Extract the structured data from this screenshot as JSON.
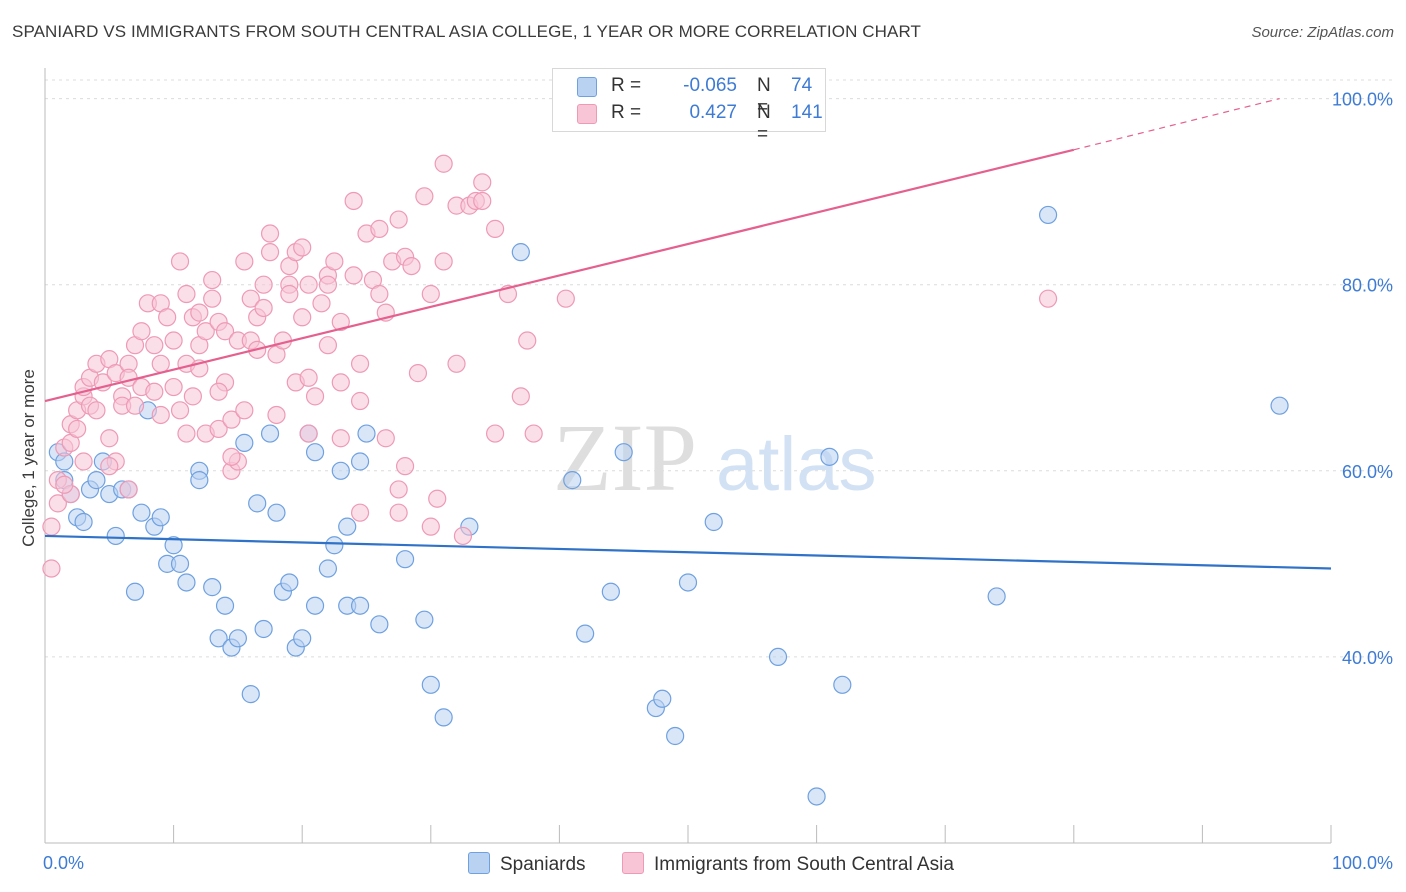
{
  "chart_data": {
    "type": "scatter",
    "title": "SPANIARD VS IMMIGRANTS FROM SOUTH CENTRAL ASIA COLLEGE, 1 YEAR OR MORE CORRELATION CHART",
    "source": "Source: ZipAtlas.com",
    "ylabel": "College, 1 year or more",
    "xlabel": "",
    "xlim": [
      0,
      100
    ],
    "ylim": [
      20,
      102
    ],
    "x_tick_labels": [
      "0.0%",
      "100.0%"
    ],
    "y_ticks": [
      {
        "value": 100,
        "label": "100.0%"
      },
      {
        "value": 80,
        "label": "80.0%"
      },
      {
        "value": 60,
        "label": "60.0%"
      },
      {
        "value": 40,
        "label": "40.0%"
      }
    ],
    "watermark": {
      "zip": "ZIP",
      "atlas": "atlas"
    },
    "legend_stats": [
      {
        "r_label": "R =",
        "r_value": "-0.065",
        "n_label": "N =",
        "n_value": "74"
      },
      {
        "r_label": "R =",
        "r_value": "0.427",
        "n_label": "N =",
        "n_value": "141"
      }
    ],
    "series": [
      {
        "name": "Spaniards",
        "color": "#6fa1e0",
        "fill": "#b9d2f2",
        "line_color": "#2f72c8",
        "trend": {
          "x0": 0,
          "y0": 53.0,
          "x1": 100,
          "y1": 49.5
        },
        "points": [
          [
            1,
            62
          ],
          [
            1.5,
            61
          ],
          [
            1.5,
            59
          ],
          [
            2,
            57.5
          ],
          [
            2.5,
            55
          ],
          [
            3,
            54.5
          ],
          [
            3.5,
            58
          ],
          [
            4,
            59
          ],
          [
            4.5,
            61
          ],
          [
            5,
            57.5
          ],
          [
            5.5,
            53
          ],
          [
            6,
            58
          ],
          [
            6.5,
            58
          ],
          [
            7,
            47
          ],
          [
            7.5,
            55.5
          ],
          [
            8,
            66.5
          ],
          [
            8.5,
            54
          ],
          [
            9,
            55
          ],
          [
            9.5,
            50
          ],
          [
            10,
            52
          ],
          [
            10.5,
            50
          ],
          [
            11,
            48
          ],
          [
            12,
            60
          ],
          [
            12,
            59
          ],
          [
            13,
            47.5
          ],
          [
            14,
            45.5
          ],
          [
            13.5,
            42
          ],
          [
            14.5,
            41
          ],
          [
            15,
            42
          ],
          [
            15.5,
            63
          ],
          [
            16,
            36
          ],
          [
            16.5,
            56.5
          ],
          [
            17,
            43
          ],
          [
            17.5,
            64
          ],
          [
            18,
            55.5
          ],
          [
            18.5,
            47
          ],
          [
            19,
            48
          ],
          [
            19.5,
            41
          ],
          [
            20,
            42
          ],
          [
            20.5,
            64
          ],
          [
            21,
            62
          ],
          [
            21,
            45.5
          ],
          [
            22,
            49.5
          ],
          [
            22.5,
            52
          ],
          [
            23,
            60
          ],
          [
            23.5,
            45.5
          ],
          [
            23.5,
            54
          ],
          [
            24.5,
            45.5
          ],
          [
            24.5,
            61
          ],
          [
            25,
            64
          ],
          [
            26,
            43.5
          ],
          [
            28,
            50.5
          ],
          [
            29.5,
            44
          ],
          [
            30,
            37
          ],
          [
            31,
            33.5
          ],
          [
            33,
            54
          ],
          [
            37,
            83.5
          ],
          [
            41,
            59
          ],
          [
            42,
            42.5
          ],
          [
            45,
            62
          ],
          [
            44,
            47
          ],
          [
            47.5,
            34.5
          ],
          [
            48,
            35.5
          ],
          [
            49,
            31.5
          ],
          [
            50,
            48
          ],
          [
            52,
            54.5
          ],
          [
            57,
            40
          ],
          [
            60,
            25
          ],
          [
            61,
            61.5
          ],
          [
            62,
            37
          ],
          [
            74,
            46.5
          ],
          [
            78,
            87.5
          ],
          [
            96,
            67
          ]
        ]
      },
      {
        "name": "Immigrants from South Central Asia",
        "color": "#ee9ab5",
        "fill": "#f7c5d5",
        "line_color": "#e5608f",
        "trend": {
          "x0": 0,
          "y0": 67.5,
          "x1": 80,
          "y1": 94.5
        },
        "trend_dashed_to": {
          "x": 96,
          "y": 100
        },
        "points": [
          [
            0.5,
            49.5
          ],
          [
            0.5,
            54
          ],
          [
            1,
            56.5
          ],
          [
            1,
            59
          ],
          [
            1.5,
            62.5
          ],
          [
            2,
            63
          ],
          [
            2,
            65
          ],
          [
            2.5,
            64.5
          ],
          [
            2.5,
            66.5
          ],
          [
            3,
            68
          ],
          [
            3,
            69
          ],
          [
            3.5,
            70
          ],
          [
            3.5,
            67
          ],
          [
            4,
            66.5
          ],
          [
            4,
            71.5
          ],
          [
            4.5,
            69.5
          ],
          [
            5,
            72
          ],
          [
            5,
            63.5
          ],
          [
            5.5,
            70.5
          ],
          [
            5.5,
            61
          ],
          [
            6,
            68
          ],
          [
            6,
            67
          ],
          [
            6.5,
            71.5
          ],
          [
            6.5,
            70
          ],
          [
            7,
            67
          ],
          [
            7,
            73.5
          ],
          [
            7.5,
            69
          ],
          [
            7.5,
            75
          ],
          [
            8,
            78
          ],
          [
            8.5,
            73.5
          ],
          [
            8.5,
            68.5
          ],
          [
            9,
            78
          ],
          [
            9,
            71.5
          ],
          [
            9.5,
            76.5
          ],
          [
            10,
            69
          ],
          [
            10,
            74
          ],
          [
            10.5,
            82.5
          ],
          [
            10.5,
            66.5
          ],
          [
            11,
            79
          ],
          [
            11,
            71.5
          ],
          [
            11.5,
            68
          ],
          [
            11.5,
            76.5
          ],
          [
            12,
            73.5
          ],
          [
            12.5,
            64
          ],
          [
            12.5,
            75
          ],
          [
            13,
            80.5
          ],
          [
            13,
            78.5
          ],
          [
            13.5,
            76
          ],
          [
            13.5,
            64.5
          ],
          [
            14,
            69.5
          ],
          [
            14,
            75
          ],
          [
            14.5,
            65.5
          ],
          [
            14.5,
            60
          ],
          [
            15,
            74
          ],
          [
            15,
            61
          ],
          [
            15.5,
            66.5
          ],
          [
            15.5,
            82.5
          ],
          [
            16,
            78.5
          ],
          [
            16,
            74
          ],
          [
            16.5,
            76.5
          ],
          [
            17,
            77.5
          ],
          [
            17,
            80
          ],
          [
            17.5,
            83.5
          ],
          [
            17.5,
            85.5
          ],
          [
            18,
            72.5
          ],
          [
            18,
            66
          ],
          [
            18.5,
            74
          ],
          [
            19,
            80
          ],
          [
            19,
            82
          ],
          [
            19.5,
            83.5
          ],
          [
            19.5,
            69.5
          ],
          [
            20,
            84
          ],
          [
            20,
            76.5
          ],
          [
            20.5,
            70
          ],
          [
            20.5,
            64
          ],
          [
            21,
            68
          ],
          [
            21.5,
            78
          ],
          [
            22,
            81
          ],
          [
            22,
            80
          ],
          [
            22.5,
            82.5
          ],
          [
            23,
            76
          ],
          [
            23,
            69.5
          ],
          [
            24,
            81
          ],
          [
            24,
            89
          ],
          [
            24.5,
            71.5
          ],
          [
            24.5,
            67.5
          ],
          [
            25,
            85.5
          ],
          [
            25.5,
            80.5
          ],
          [
            26,
            79
          ],
          [
            26,
            86
          ],
          [
            26.5,
            77
          ],
          [
            27,
            82.5
          ],
          [
            27.5,
            87
          ],
          [
            27.5,
            58
          ],
          [
            28,
            83
          ],
          [
            28.5,
            82
          ],
          [
            29,
            70.5
          ],
          [
            29.5,
            89.5
          ],
          [
            30,
            79
          ],
          [
            30.5,
            57
          ],
          [
            31,
            82.5
          ],
          [
            31,
            93
          ],
          [
            32,
            88.5
          ],
          [
            32,
            71.5
          ],
          [
            33,
            88.5
          ],
          [
            33.5,
            89
          ],
          [
            34,
            91
          ],
          [
            34,
            89
          ],
          [
            35,
            86
          ],
          [
            35,
            64
          ],
          [
            36,
            79
          ],
          [
            37,
            68
          ],
          [
            37.5,
            74
          ],
          [
            20.5,
            80
          ],
          [
            16.5,
            73
          ],
          [
            9,
            66
          ],
          [
            12,
            77
          ],
          [
            14.5,
            61.5
          ],
          [
            26.5,
            63.5
          ],
          [
            23,
            63.5
          ],
          [
            30,
            54
          ],
          [
            32.5,
            53
          ],
          [
            27.5,
            55.5
          ],
          [
            24.5,
            55.5
          ],
          [
            28,
            60.5
          ],
          [
            40.5,
            78.5
          ],
          [
            78,
            78.5
          ],
          [
            38,
            64
          ],
          [
            11,
            64
          ],
          [
            3,
            61
          ],
          [
            5,
            60.5
          ],
          [
            6.5,
            58
          ],
          [
            2,
            57.5
          ],
          [
            1.5,
            58.5
          ],
          [
            12,
            71
          ],
          [
            13.5,
            68.5
          ],
          [
            22,
            73.5
          ],
          [
            19,
            79
          ]
        ]
      }
    ]
  }
}
